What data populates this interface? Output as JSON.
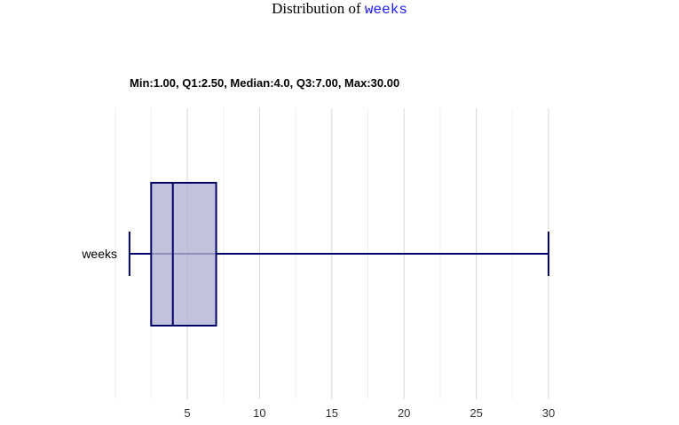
{
  "page_title": {
    "prefix": "Distribution of ",
    "variable": "weeks"
  },
  "stats_text": "Min:1.00, Q1:2.50, Median:4.0, Q3:7.00, Max:30.00",
  "colors": {
    "box_fill": "#b3b3d4",
    "box_stroke": "#000066",
    "grid": "#d9d9d9",
    "grid_minor": "#eeeeee"
  },
  "chart_data": {
    "type": "box",
    "orientation": "horizontal",
    "categories": [
      "weeks"
    ],
    "boxes": [
      {
        "name": "weeks",
        "min": 1.0,
        "q1": 2.5,
        "median": 4.0,
        "q3": 7.0,
        "max": 30.0
      }
    ],
    "xlim": [
      -4.5,
      32
    ],
    "xticks": [
      5,
      10,
      15,
      20,
      25,
      30
    ],
    "grid": true
  }
}
